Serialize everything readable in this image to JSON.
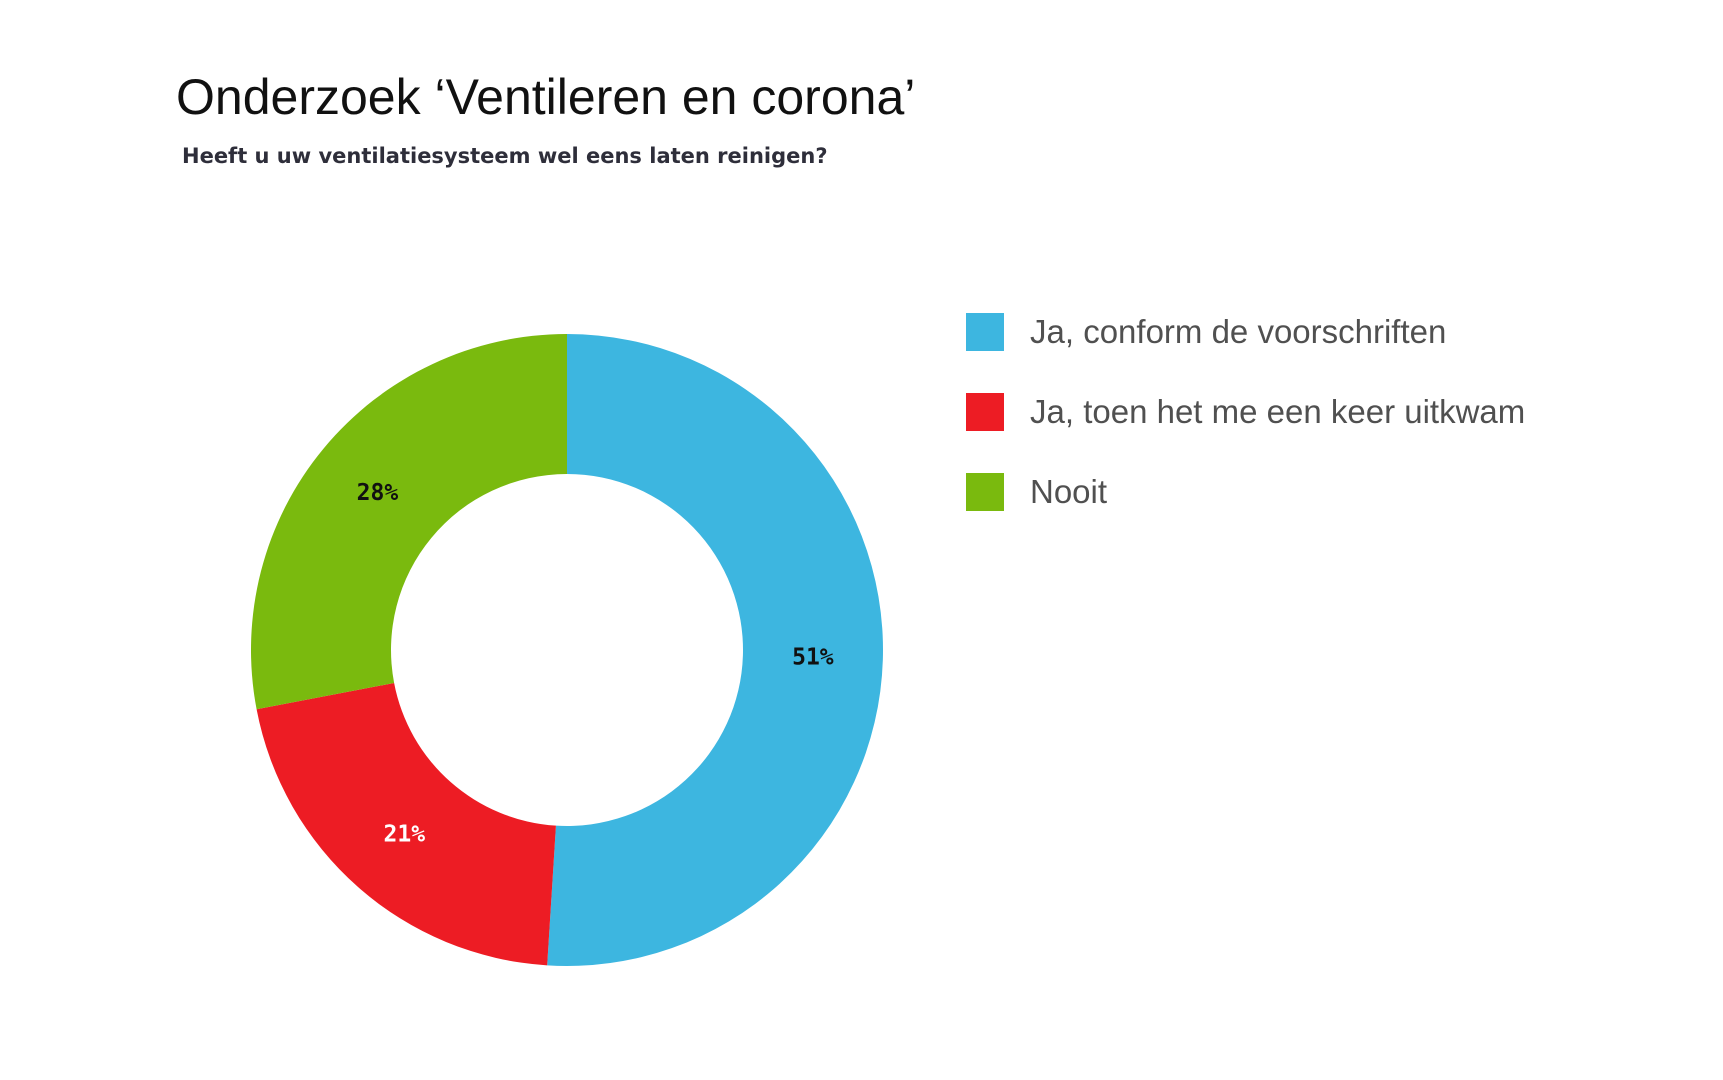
{
  "title": "Onderzoek ‘Ventileren en corona’",
  "subtitle": "Heeft u uw ventilatiesysteem wel eens laten reinigen?",
  "chart_data": {
    "type": "pie",
    "donut": true,
    "title": "Onderzoek ‘Ventileren en corona’",
    "subtitle": "Heeft u uw ventilatiesysteem wel eens laten reinigen?",
    "legend_position": "right",
    "slices": [
      {
        "label": "Ja, conform de voorschriften",
        "value": 51,
        "display": "51%",
        "color": "#3db6e0",
        "label_color": "#111111"
      },
      {
        "label": "Ja, toen het me een keer uitkwam",
        "value": 21,
        "display": "21%",
        "color": "#ed1c24",
        "label_color": "#ffffff"
      },
      {
        "label": "Nooit",
        "value": 28,
        "display": "28%",
        "color": "#7aba0e",
        "label_color": "#111111"
      }
    ]
  }
}
